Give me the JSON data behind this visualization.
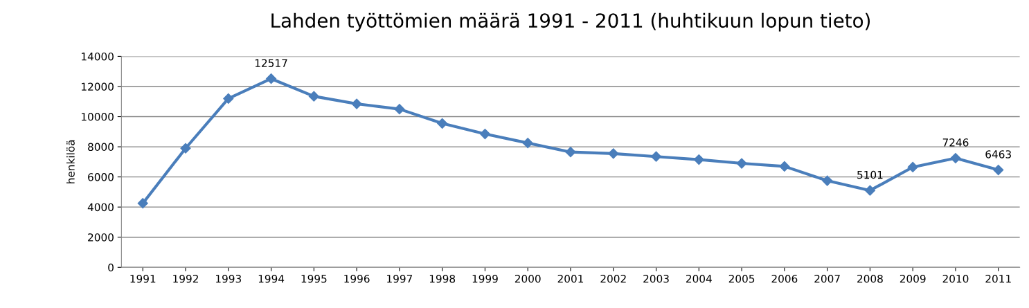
{
  "chart_data": {
    "type": "line",
    "title": "Lahden työttömien määrä 1991 - 2011 (huhtikuun lopun tieto)",
    "ylabel": "henkilöä",
    "categories": [
      "1991",
      "1992",
      "1993",
      "1994",
      "1995",
      "1996",
      "1997",
      "1998",
      "1999",
      "2000",
      "2001",
      "2002",
      "2003",
      "2004",
      "2005",
      "2006",
      "2007",
      "2008",
      "2009",
      "2010",
      "2011"
    ],
    "series": [
      {
        "color": "#4a7ebb",
        "values": [
          4250,
          7900,
          11200,
          12517,
          11350,
          10850,
          10500,
          9550,
          8850,
          8250,
          7650,
          7550,
          7350,
          7150,
          6900,
          6700,
          5750,
          5101,
          6650,
          7246,
          6463
        ],
        "value_labels": [
          null,
          null,
          null,
          "12517",
          null,
          null,
          null,
          null,
          null,
          null,
          null,
          null,
          null,
          null,
          null,
          null,
          null,
          "5101",
          null,
          "7246",
          "6463"
        ]
      }
    ],
    "ylim": [
      0,
      14000
    ],
    "yticks": [
      0,
      2000,
      4000,
      6000,
      8000,
      10000,
      12000,
      14000
    ],
    "grid": "y",
    "marker": "diamond",
    "line_style": "solid"
  }
}
